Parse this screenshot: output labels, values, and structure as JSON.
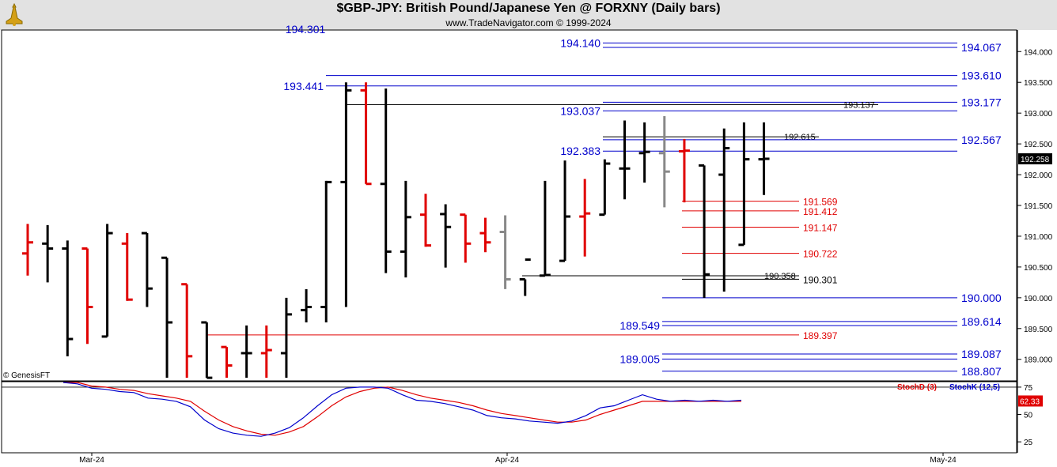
{
  "header": {
    "title": "$GBP-JPY:  British Pound/Japanese Yen @ FORXNY  (Daily bars)",
    "subtitle": "www.TradeNavigator.com © 1999-2024",
    "watermark": "© GenesisFT",
    "logo_icon": "gold-bell-logo-icon"
  },
  "chart_data": {
    "type": "bar",
    "price_axis": {
      "ylim": [
        188.65,
        194.35
      ],
      "ticks": [
        189.0,
        189.5,
        190.0,
        190.5,
        191.0,
        191.5,
        192.0,
        192.5,
        193.0,
        193.5,
        194.0
      ],
      "tick_labels": [
        "189.000",
        "189.500",
        "190.000",
        "190.500",
        "191.000",
        "191.500",
        "192.000",
        "192.500",
        "193.000",
        "193.500",
        "194.000"
      ],
      "last_price": "192.258"
    },
    "x_axis": {
      "labels": [
        "Mar-24",
        "Apr-24",
        "May-24"
      ]
    },
    "colors": {
      "up": "#000000",
      "down": "#e00000",
      "neutral": "#888888",
      "blue_level": "#0000cc",
      "red_level": "#e00000",
      "stoch_d": "#e00000",
      "stoch_k": "#0000cc"
    },
    "bars": [
      {
        "i": 0,
        "o": 190.72,
        "h": 191.2,
        "l": 190.36,
        "c": 190.9,
        "d": "down"
      },
      {
        "i": 1,
        "o": 190.88,
        "h": 191.18,
        "l": 190.25,
        "c": 190.8,
        "d": "up"
      },
      {
        "i": 2,
        "o": 190.8,
        "h": 190.93,
        "l": 189.05,
        "c": 189.33,
        "d": "up"
      },
      {
        "i": 3,
        "o": 190.8,
        "h": 190.8,
        "l": 189.25,
        "c": 189.85,
        "d": "down"
      },
      {
        "i": 4,
        "o": 189.37,
        "h": 191.2,
        "l": 189.37,
        "c": 191.05,
        "d": "up"
      },
      {
        "i": 5,
        "o": 190.88,
        "h": 191.05,
        "l": 189.95,
        "c": 189.97,
        "d": "down"
      },
      {
        "i": 6,
        "o": 191.05,
        "h": 191.05,
        "l": 189.85,
        "c": 190.15,
        "d": "up"
      },
      {
        "i": 7,
        "o": 190.65,
        "h": 190.65,
        "l": 188.7,
        "c": 189.6,
        "d": "up"
      },
      {
        "i": 8,
        "o": 190.22,
        "h": 190.22,
        "l": 188.7,
        "c": 189.05,
        "d": "down"
      },
      {
        "i": 9,
        "o": 189.6,
        "h": 189.6,
        "l": 188.7,
        "c": 188.7,
        "d": "up"
      },
      {
        "i": 10,
        "o": 189.2,
        "h": 189.2,
        "l": 188.7,
        "c": 188.9,
        "d": "down"
      },
      {
        "i": 11,
        "o": 189.1,
        "h": 189.55,
        "l": 188.7,
        "c": 189.1,
        "d": "up"
      },
      {
        "i": 12,
        "o": 189.1,
        "h": 189.55,
        "l": 188.7,
        "c": 189.15,
        "d": "down"
      },
      {
        "i": 13,
        "o": 189.1,
        "h": 190.0,
        "l": 188.7,
        "c": 189.73,
        "d": "up"
      },
      {
        "i": 14,
        "o": 189.8,
        "h": 190.14,
        "l": 189.6,
        "c": 189.85,
        "d": "up"
      },
      {
        "i": 15,
        "o": 189.85,
        "h": 191.9,
        "l": 189.6,
        "c": 191.88,
        "d": "up"
      },
      {
        "i": 16,
        "o": 191.88,
        "h": 193.5,
        "l": 189.85,
        "c": 193.37,
        "d": "up"
      },
      {
        "i": 17,
        "o": 193.37,
        "h": 193.5,
        "l": 191.85,
        "c": 191.85,
        "d": "down"
      },
      {
        "i": 18,
        "o": 191.85,
        "h": 193.4,
        "l": 190.4,
        "c": 190.75,
        "d": "up"
      },
      {
        "i": 19,
        "o": 190.75,
        "h": 191.9,
        "l": 190.33,
        "c": 191.31,
        "d": "up"
      },
      {
        "i": 20,
        "o": 191.35,
        "h": 191.69,
        "l": 190.83,
        "c": 190.85,
        "d": "down"
      },
      {
        "i": 21,
        "o": 191.36,
        "h": 191.52,
        "l": 190.49,
        "c": 191.15,
        "d": "up"
      },
      {
        "i": 22,
        "o": 191.35,
        "h": 191.35,
        "l": 190.57,
        "c": 190.88,
        "d": "down"
      },
      {
        "i": 23,
        "o": 191.05,
        "h": 191.3,
        "l": 190.74,
        "c": 190.9,
        "d": "down"
      },
      {
        "i": 24,
        "o": 191.07,
        "h": 191.34,
        "l": 190.14,
        "c": 190.3,
        "d": "neutral"
      },
      {
        "i": 25,
        "o": 190.3,
        "h": 190.3,
        "l": 190.03,
        "c": 190.62,
        "d": "up"
      },
      {
        "i": 26,
        "o": 190.36,
        "h": 191.9,
        "l": 190.36,
        "c": 190.37,
        "d": "up"
      },
      {
        "i": 27,
        "o": 190.6,
        "h": 192.23,
        "l": 190.6,
        "c": 191.32,
        "d": "up"
      },
      {
        "i": 28,
        "o": 191.32,
        "h": 191.93,
        "l": 190.67,
        "c": 191.37,
        "d": "down"
      },
      {
        "i": 29,
        "o": 191.35,
        "h": 192.25,
        "l": 191.35,
        "c": 192.18,
        "d": "up"
      },
      {
        "i": 30,
        "o": 192.1,
        "h": 192.88,
        "l": 191.6,
        "c": 192.1,
        "d": "up"
      },
      {
        "i": 31,
        "o": 192.35,
        "h": 192.85,
        "l": 191.87,
        "c": 192.37,
        "d": "up"
      },
      {
        "i": 32,
        "o": 192.35,
        "h": 192.95,
        "l": 191.47,
        "c": 192.05,
        "d": "neutral"
      },
      {
        "i": 33,
        "o": 192.38,
        "h": 192.58,
        "l": 191.55,
        "c": 192.39,
        "d": "down"
      },
      {
        "i": 34,
        "o": 192.15,
        "h": 192.15,
        "l": 190.0,
        "c": 190.38,
        "d": "up"
      },
      {
        "i": 35,
        "o": 192.0,
        "h": 192.75,
        "l": 190.1,
        "c": 192.43,
        "d": "up"
      },
      {
        "i": 36,
        "o": 190.86,
        "h": 192.85,
        "l": 190.86,
        "c": 192.25,
        "d": "up"
      },
      {
        "i": 37,
        "o": 192.25,
        "h": 192.85,
        "l": 191.67,
        "c": 192.258,
        "d": "up"
      }
    ],
    "levels": [
      {
        "price": 194.14,
        "label": "194.140",
        "side": "left",
        "color": "blue",
        "x0": 762
      },
      {
        "price": 194.067,
        "label": "194.067",
        "side": "right",
        "color": "blue",
        "x0": 762
      },
      {
        "price": 193.61,
        "label": "193.610",
        "side": "right",
        "color": "blue",
        "x0": 412
      },
      {
        "price": 193.441,
        "label": "193.441",
        "side": "left",
        "color": "blue",
        "x0": 412
      },
      {
        "price": 193.177,
        "label": "193.177",
        "side": "right",
        "color": "blue",
        "x0": 762
      },
      {
        "price": 193.137,
        "label": "193.137",
        "side": "mid",
        "color": "black",
        "x0": 437
      },
      {
        "price": 193.037,
        "label": "193.037",
        "side": "left",
        "color": "blue",
        "x0": 762
      },
      {
        "price": 192.615,
        "label": "192.615",
        "side": "mid",
        "color": "black",
        "x0": 762
      },
      {
        "price": 192.567,
        "label": "192.567",
        "side": "right",
        "color": "blue",
        "x0": 762
      },
      {
        "price": 192.383,
        "label": "192.383",
        "side": "left",
        "color": "blue",
        "x0": 762
      },
      {
        "price": 191.569,
        "label": "191.569",
        "side": "red",
        "color": "red",
        "x0": 862
      },
      {
        "price": 191.412,
        "label": "191.412",
        "side": "red",
        "color": "red",
        "x0": 862
      },
      {
        "price": 191.147,
        "label": "191.147",
        "side": "red",
        "color": "red",
        "x0": 862
      },
      {
        "price": 190.722,
        "label": "190.722",
        "side": "red",
        "color": "red",
        "x0": 862
      },
      {
        "price": 190.358,
        "label": "190.358",
        "side": "mid",
        "color": "black",
        "x0": 660
      },
      {
        "price": 190.301,
        "label": "190.301",
        "side": "redblack",
        "color": "black",
        "x0": 862
      },
      {
        "price": 190.0,
        "label": "190.000",
        "side": "right",
        "color": "blue",
        "x0": 837
      },
      {
        "price": 189.614,
        "label": "189.614",
        "side": "right",
        "color": "blue",
        "x0": 837
      },
      {
        "price": 189.549,
        "label": "189.549",
        "side": "left",
        "color": "blue",
        "x0": 837
      },
      {
        "price": 189.397,
        "label": "189.397",
        "side": "red",
        "color": "red",
        "x0": 262
      },
      {
        "price": 189.087,
        "label": "189.087",
        "side": "right",
        "color": "blue",
        "x0": 837
      },
      {
        "price": 189.005,
        "label": "189.005",
        "side": "left",
        "color": "blue",
        "x0": 837
      },
      {
        "price": 188.807,
        "label": "188.807",
        "side": "right",
        "color": "blue",
        "x0": 837
      }
    ],
    "partial_label": {
      "label": "194.301",
      "price": 194.301
    },
    "stochastic": {
      "legend_d": "StochD (3)",
      "legend_k": "StochK (12,5)",
      "ylim": [
        15,
        80
      ],
      "ticks": [
        25,
        50,
        75
      ],
      "tick_labels": [
        "25",
        "50",
        "75"
      ],
      "last_value": "62.33",
      "k": [
        83,
        78,
        74,
        73,
        71,
        70,
        65,
        64,
        62,
        57,
        45,
        37,
        33,
        31,
        30,
        33,
        38,
        47,
        58,
        68,
        74,
        75,
        75,
        74,
        68,
        63,
        62,
        60,
        57,
        54,
        49,
        47,
        46,
        44,
        43,
        42,
        44,
        49,
        56,
        58,
        63,
        68,
        64,
        62,
        63,
        62,
        63,
        62,
        63
      ],
      "d": [
        84,
        80,
        76,
        75,
        73,
        72,
        69,
        67,
        65,
        62,
        53,
        45,
        39,
        35,
        32,
        31,
        34,
        39,
        48,
        58,
        66,
        71,
        74,
        75,
        72,
        68,
        65,
        63,
        61,
        58,
        54,
        51,
        49,
        47,
        45,
        43,
        43,
        45,
        50,
        54,
        58,
        62,
        62,
        62,
        62,
        62,
        62,
        62,
        62
      ]
    }
  }
}
